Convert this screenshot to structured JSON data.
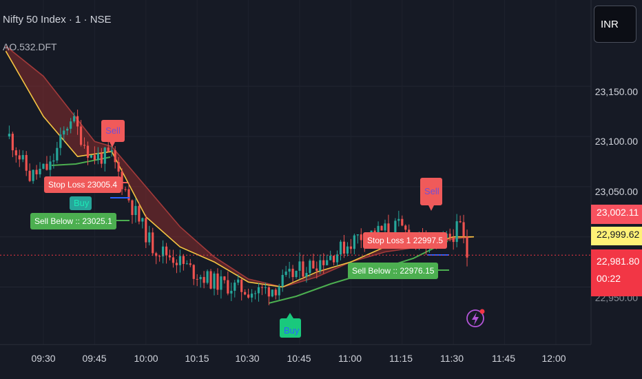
{
  "header": {
    "symbol_line": "Nifty 50 Index · 1 · NSE",
    "indicator": "AO.532.DFT"
  },
  "currency_button": {
    "label": "INR"
  },
  "price_scale": {
    "ticks": [
      {
        "value": 23150,
        "label": "23,150.00"
      },
      {
        "value": 23100,
        "label": "23,100.00"
      },
      {
        "value": 23050,
        "label": "23,050.00"
      },
      {
        "value": 22950,
        "label": "22,950.00"
      }
    ],
    "tags": [
      {
        "label": "23,002.11",
        "bg": "#f7525f",
        "fg": "#ffffff"
      },
      {
        "label": "22,999.62",
        "bg": "#fff176",
        "fg": "#131722"
      },
      {
        "label": "22,981.80",
        "sub": "00:22",
        "bg": "#f23645",
        "fg": "#ffffff"
      }
    ]
  },
  "time_axis": {
    "ticks": [
      "09:30",
      "09:45",
      "10:00",
      "10:15",
      "10:30",
      "10:45",
      "11:00",
      "11:15",
      "11:30",
      "11:45",
      "12:00"
    ]
  },
  "signals": {
    "sell_1": "Sell",
    "sell_2": "Sell",
    "buy_1": "Buy",
    "buy_2": "Buy",
    "stop_loss_1": "Stop Loss 23005.4",
    "stop_loss_2": "Stop Loss 1 22997.5",
    "sell_below_1": "Sell Below :: 23025.1",
    "sell_below_2": "Sell Below :: 22976.15"
  },
  "colors": {
    "background": "#161a25",
    "up": "#26a69a",
    "down": "#ef5350",
    "fast_ma": "#f5c542",
    "slow_ma_fill": "#8b2e2e",
    "signal_green": "#4caf50",
    "signal_red": "#f05a5a",
    "last_price_line": "#f23645",
    "buy_teal": "#1de9b6"
  },
  "chart_data": {
    "type": "candlestick",
    "title": "Nifty 50 Index · 1 · NSE",
    "x_range": [
      "09:19",
      "12:07"
    ],
    "y_range": [
      22935,
      23193
    ],
    "last_price": 22981.8,
    "series": [
      {
        "name": "candles",
        "x": [
          "09:20",
          "09:26",
          "09:32",
          "09:38",
          "09:44",
          "09:50",
          "09:56",
          "10:02",
          "10:08",
          "10:14",
          "10:20",
          "10:26",
          "10:32",
          "10:38",
          "10:44",
          "10:50",
          "10:56",
          "11:02",
          "11:08",
          "11:14",
          "11:20",
          "11:26",
          "11:32",
          "11:34"
        ],
        "close": [
          23100,
          23060,
          23070,
          23120,
          23080,
          23080,
          23030,
          22990,
          22980,
          22965,
          22955,
          22950,
          22945,
          22950,
          22965,
          22975,
          22985,
          23000,
          23005,
          23010,
          22995,
          22990,
          23010,
          22982
        ]
      },
      {
        "name": "fast_ma",
        "x": [
          "09:19",
          "09:30",
          "09:40",
          "09:50",
          "10:00",
          "10:10",
          "10:20",
          "10:30",
          "10:40",
          "10:50",
          "11:00",
          "11:10",
          "11:20",
          "11:30",
          "11:36"
        ],
        "y": [
          23185,
          23120,
          23080,
          23085,
          23020,
          22990,
          22975,
          22955,
          22950,
          22965,
          22975,
          22990,
          22990,
          23000,
          23000
        ]
      },
      {
        "name": "slow_ma",
        "x": [
          "09:19",
          "09:30",
          "09:45",
          "09:50",
          "10:00",
          "10:10",
          "10:20",
          "10:30",
          "10:40",
          "10:50",
          "11:00",
          "11:10",
          "11:20",
          "11:30",
          "11:36"
        ],
        "y": [
          23190,
          23160,
          23095,
          23090,
          23050,
          23010,
          22980,
          22958,
          22950,
          22960,
          22975,
          22985,
          22990,
          22998,
          23000
        ]
      }
    ],
    "annotations": [
      "Sell",
      "Sell",
      "Buy",
      "Buy",
      "Stop Loss 23005.4",
      "Stop Loss 1 22997.5",
      "Sell Below :: 23025.1",
      "Sell Below :: 22976.15"
    ]
  }
}
